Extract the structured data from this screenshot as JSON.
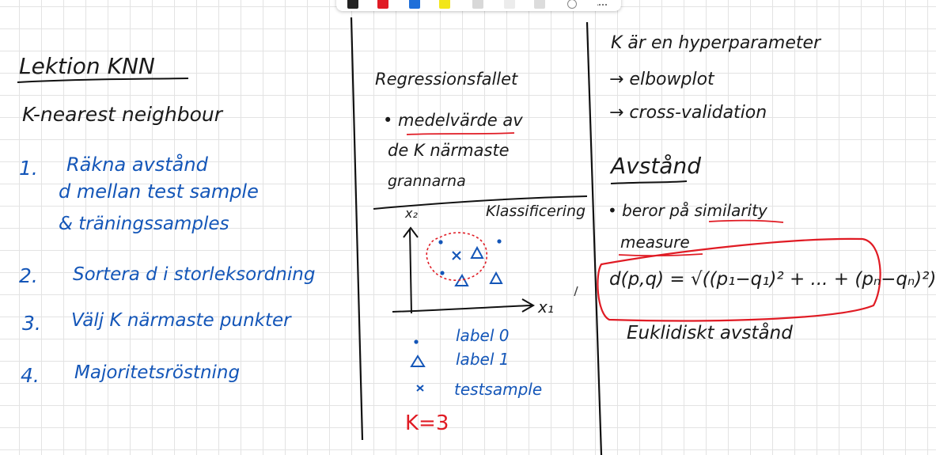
{
  "toolbar": {
    "tools": [
      "pen-black",
      "pen-red",
      "pen-blue",
      "highlighter-yellow",
      "eraser",
      "lasso",
      "ruler"
    ],
    "colors": {
      "black": "#222222",
      "red": "#e01b24",
      "blue": "#1e6fd9",
      "yellow": "#f2e61a"
    }
  },
  "colors": {
    "ink_black": "#1a1a1a",
    "ink_blue": "#1456b8",
    "ink_red": "#e01b24"
  },
  "left": {
    "title": "Lektion KNN",
    "subtitle": "K-nearest neighbour",
    "steps": [
      {
        "num": "1.",
        "lines": [
          "Räkna avstånd",
          "d mellan test sample",
          "& träningssamples"
        ]
      },
      {
        "num": "2.",
        "lines": [
          "Sortera d i storleksordning"
        ]
      },
      {
        "num": "3.",
        "lines": [
          "Välj K närmaste punkter"
        ]
      },
      {
        "num": "4.",
        "lines": [
          "Majoritetsröstning"
        ]
      }
    ]
  },
  "middle": {
    "regression": [
      "Regressionsfallet",
      "• medelvärde av",
      "de K närmaste",
      "grannarna"
    ],
    "classification": "Klassificering",
    "axis_y": "x₂",
    "axis_x": "x₁",
    "legend": [
      {
        "symbol": "•",
        "label": "label 0"
      },
      {
        "symbol": "△",
        "label": "label 1"
      },
      {
        "symbol": "x",
        "label": "testsample"
      }
    ],
    "k_value": "K=3"
  },
  "right": {
    "hyper": [
      "K är en hyperparameter",
      "→ elbowplot",
      "→ cross-validation"
    ],
    "heading": "Avstånd",
    "similarity": [
      "• beror på similarity",
      "measure"
    ],
    "formula": "d(p,q) = √((p₁−q₁)² + ... + (pₙ−qₙ)²)",
    "euclid": "Euklidiskt avstånd"
  }
}
